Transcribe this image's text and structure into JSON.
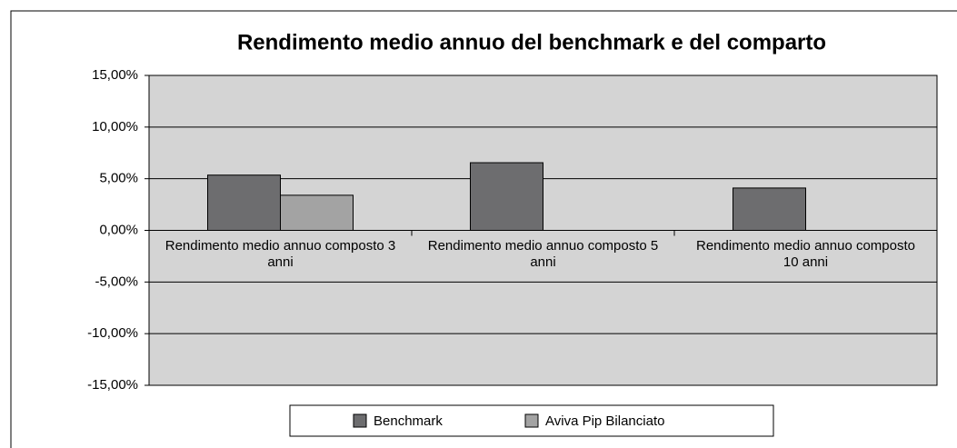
{
  "chart_data": {
    "type": "bar",
    "title": "Rendimento medio annuo del benchmark e del comparto",
    "categories": [
      "Rendimento medio annuo composto 3 anni",
      "Rendimento medio annuo composto 5 anni",
      "Rendimento medio annuo composto 10 anni"
    ],
    "series": [
      {
        "name": "Benchmark",
        "color": "#6d6d6f",
        "values": [
          5.35,
          6.55,
          4.1
        ]
      },
      {
        "name": "Aviva Pip Bilanciato",
        "color": "#a3a3a3",
        "values": [
          3.4,
          null,
          null
        ]
      }
    ],
    "ylim": [
      -15,
      15
    ],
    "yticks": [
      {
        "value": -15,
        "label": "-15,00%"
      },
      {
        "value": -10,
        "label": "-10,00%"
      },
      {
        "value": -5,
        "label": "-5,00%"
      },
      {
        "value": 0,
        "label": "0,00%"
      },
      {
        "value": 5,
        "label": "5,00%"
      },
      {
        "value": 10,
        "label": "10,00%"
      },
      {
        "value": 15,
        "label": "15,00%"
      }
    ],
    "grid": true,
    "legend": "bottom"
  }
}
